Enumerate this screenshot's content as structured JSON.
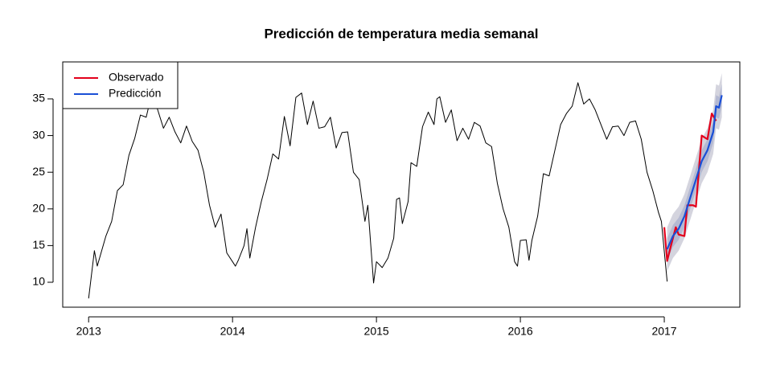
{
  "chart_data": {
    "type": "line",
    "title": "Predicción de temperatura media semanal",
    "xlim": [
      2012.82,
      2017.525
    ],
    "xticks": [
      2013,
      2014,
      2015,
      2016,
      2017
    ],
    "ylim": [
      6.6,
      40.04
    ],
    "yticks": [
      10,
      15,
      20,
      25,
      30,
      35
    ],
    "grid": false,
    "legend": "topleft",
    "intervals": [
      {
        "color": "#d4d4de",
        "x": [
          2017.02,
          2017.06,
          2017.1,
          2017.14,
          2017.18,
          2017.22,
          2017.26,
          2017.3,
          2017.34,
          2017.36,
          2017.38,
          2017.4
        ],
        "lower": [
          11.5,
          13.3,
          14.3,
          16,
          18.5,
          21,
          23.5,
          25,
          27.5,
          31,
          30.8,
          32.5
        ],
        "upper": [
          17.5,
          19.3,
          20.3,
          22,
          24.5,
          27,
          29.5,
          31,
          33.5,
          37,
          36.8,
          38.5
        ]
      },
      {
        "color": "#b4b9d2",
        "x": [
          2017.02,
          2017.06,
          2017.1,
          2017.14,
          2017.18,
          2017.22,
          2017.26,
          2017.3,
          2017.34,
          2017.36,
          2017.38,
          2017.4
        ],
        "lower": [
          13,
          14.8,
          15.8,
          17.5,
          20,
          22.5,
          25,
          26.5,
          29,
          32.5,
          32.3,
          34
        ],
        "upper": [
          16,
          17.8,
          18.8,
          20.5,
          23,
          25.5,
          28,
          29.5,
          32,
          35.5,
          35.3,
          37
        ]
      }
    ],
    "series": [
      {
        "color": "#000000",
        "width": 1,
        "x": [
          2013.0,
          2013.04,
          2013.06,
          2013.12,
          2013.16,
          2013.2,
          2013.24,
          2013.28,
          2013.32,
          2013.36,
          2013.4,
          2013.44,
          2013.48,
          2013.52,
          2013.56,
          2013.6,
          2013.64,
          2013.68,
          2013.72,
          2013.76,
          2013.8,
          2013.84,
          2013.88,
          2013.92,
          2013.96,
          2014.0,
          2014.02,
          2014.04,
          2014.08,
          2014.1,
          2014.12,
          2014.16,
          2014.2,
          2014.24,
          2014.28,
          2014.32,
          2014.36,
          2014.4,
          2014.44,
          2014.48,
          2014.52,
          2014.56,
          2014.6,
          2014.64,
          2014.68,
          2014.72,
          2014.76,
          2014.8,
          2014.84,
          2014.88,
          2014.92,
          2014.94,
          2014.98,
          2015.0,
          2015.04,
          2015.08,
          2015.12,
          2015.14,
          2015.16,
          2015.18,
          2015.22,
          2015.24,
          2015.28,
          2015.32,
          2015.36,
          2015.4,
          2015.42,
          2015.44,
          2015.48,
          2015.52,
          2015.56,
          2015.6,
          2015.64,
          2015.68,
          2015.72,
          2015.76,
          2015.8,
          2015.84,
          2015.88,
          2015.92,
          2015.96,
          2015.98,
          2016.0,
          2016.04,
          2016.06,
          2016.08,
          2016.12,
          2016.16,
          2016.2,
          2016.24,
          2016.28,
          2016.32,
          2016.36,
          2016.4,
          2016.44,
          2016.48,
          2016.52,
          2016.56,
          2016.6,
          2016.64,
          2016.68,
          2016.72,
          2016.76,
          2016.8,
          2016.84,
          2016.88,
          2016.92,
          2016.96,
          2016.98,
          2017.02
        ],
        "values": [
          7.8,
          14.3,
          12.2,
          16.3,
          18.3,
          22.5,
          23.3,
          27.3,
          29.6,
          32.8,
          32.5,
          35.8,
          33.5,
          31,
          32.5,
          30.5,
          29,
          31.3,
          29.2,
          28,
          25,
          20.5,
          17.5,
          19.3,
          14,
          12.8,
          12.2,
          13,
          15,
          17.3,
          13.3,
          17.5,
          21,
          24,
          27.5,
          26.8,
          32.6,
          28.6,
          35.2,
          35.8,
          31.5,
          34.7,
          31,
          31.2,
          32.5,
          28.3,
          30.4,
          30.5,
          25,
          24,
          18.3,
          20.5,
          9.9,
          12.8,
          12,
          13.3,
          16,
          21.3,
          21.5,
          18,
          21,
          26.3,
          25.8,
          31.2,
          33.2,
          31.5,
          35,
          35.3,
          31.8,
          33.5,
          29.3,
          31,
          29.5,
          31.8,
          31.3,
          29,
          28.5,
          23.5,
          20,
          17.5,
          12.8,
          12.2,
          15.7,
          15.8,
          13,
          15.7,
          19,
          24.8,
          24.5,
          28,
          31.5,
          33,
          34,
          37.2,
          34.3,
          35,
          33.5,
          31.5,
          29.5,
          31.2,
          31.3,
          30,
          31.8,
          32,
          29.5,
          25,
          22.5,
          19.5,
          18.3,
          10.1
        ]
      },
      {
        "name": "Observado",
        "color": "#e3001b",
        "width": 2.2,
        "x": [
          2017.0,
          2017.02,
          2017.04,
          2017.08,
          2017.1,
          2017.14,
          2017.16,
          2017.2,
          2017.22,
          2017.26,
          2017.3,
          2017.33,
          2017.36
        ],
        "values": [
          17.5,
          12.9,
          14.5,
          17.5,
          16.5,
          16.3,
          20.5,
          20.5,
          20.3,
          30,
          29.5,
          33,
          32
        ]
      },
      {
        "name": "Predicción",
        "color": "#1a4fd6",
        "width": 2.2,
        "x": [
          2017.02,
          2017.06,
          2017.1,
          2017.14,
          2017.18,
          2017.22,
          2017.26,
          2017.3,
          2017.34,
          2017.36,
          2017.38,
          2017.4
        ],
        "values": [
          14.5,
          16.3,
          17.3,
          19,
          21.5,
          24,
          26.5,
          28,
          30.5,
          34,
          33.8,
          35.5
        ]
      }
    ]
  }
}
